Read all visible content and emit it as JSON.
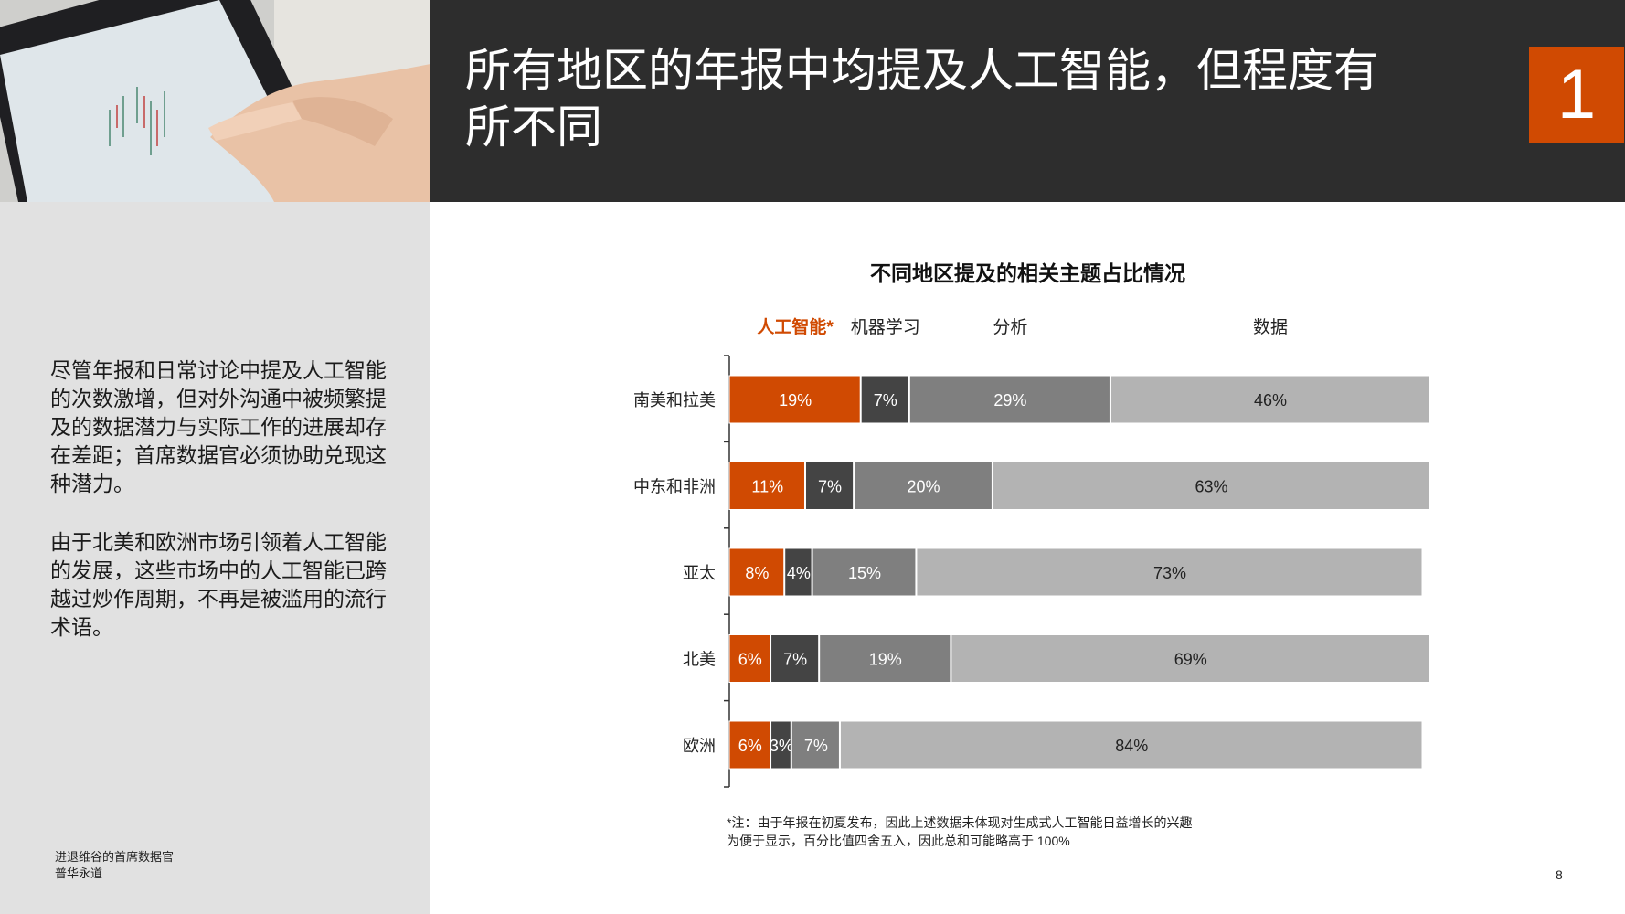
{
  "header": {
    "title": "所有地区的年报中均提及人工智能，但程度有所不同",
    "section_number": "1"
  },
  "left_panel": {
    "paragraphs": [
      "尽管年报和日常讨论中提及人工智能的次数激增，但对外沟通中被频繁提及的数据潜力与实际工作的进展却存在差距；首席数据官必须协助兑现这种潜力。",
      "由于北美和欧洲市场引领着人工智能的发展，这些市场中的人工智能已跨越过炒作周期，不再是被滥用的流行术语。"
    ],
    "source_line1": "进退维谷的首席数据官",
    "source_line2": "普华永道"
  },
  "page_number": "8",
  "chart_data": {
    "type": "bar",
    "orientation": "horizontal",
    "stacked": true,
    "title": "不同地区提及的相关主题占比情况",
    "categories": [
      "南美和拉美",
      "中东和非洲",
      "亚太",
      "北美",
      "欧洲"
    ],
    "series": [
      {
        "name": "人工智能*",
        "color": "#d04a02",
        "label_color": "#d04a02",
        "values": [
          19,
          11,
          8,
          6,
          6
        ]
      },
      {
        "name": "机器学习",
        "color": "#444444",
        "label_color": "#222222",
        "values": [
          7,
          7,
          4,
          7,
          3
        ]
      },
      {
        "name": "分析",
        "color": "#7f7f7f",
        "label_color": "#222222",
        "values": [
          29,
          20,
          15,
          19,
          7
        ]
      },
      {
        "name": "数据",
        "color": "#b3b3b3",
        "label_color": "#222222",
        "values": [
          46,
          63,
          73,
          69,
          84
        ]
      }
    ],
    "value_suffix": "%",
    "legend_position": "top",
    "grid": false,
    "footnote_line1": "*注：由于年报在初夏发布，因此上述数据未体现对生成式人工智能日益增长的兴趣",
    "footnote_line2": "为便于显示，百分比值四舍五入，因此总和可能略高于 100%"
  }
}
